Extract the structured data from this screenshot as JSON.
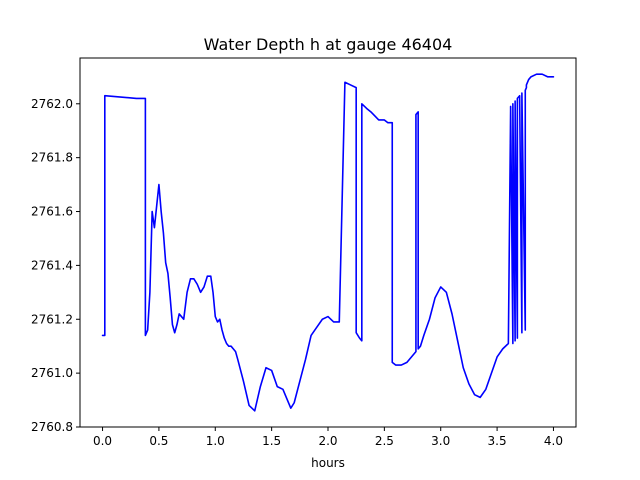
{
  "chart_data": {
    "type": "line",
    "title": "Water Depth h at gauge 46404",
    "xlabel": "hours",
    "ylabel": "",
    "xlim": [
      -0.2,
      4.2
    ],
    "ylim": [
      2760.8,
      2762.17
    ],
    "xticks": [
      0.0,
      0.5,
      1.0,
      1.5,
      2.0,
      2.5,
      3.0,
      3.5,
      4.0
    ],
    "xtick_labels": [
      "0.0",
      "0.5",
      "1.0",
      "1.5",
      "2.0",
      "2.5",
      "3.0",
      "3.5",
      "4.0"
    ],
    "yticks": [
      2760.8,
      2761.0,
      2761.2,
      2761.4,
      2761.6,
      2761.8,
      2762.0
    ],
    "ytick_labels": [
      "2760.8",
      "2761.0",
      "2761.2",
      "2761.4",
      "2761.6",
      "2761.8",
      "2762.0"
    ],
    "grid": false,
    "series": [
      {
        "name": "",
        "color": "#0000ff",
        "x": [
          0.0,
          0.02,
          0.02,
          0.3,
          0.38,
          0.38,
          0.4,
          0.42,
          0.44,
          0.46,
          0.48,
          0.5,
          0.52,
          0.54,
          0.56,
          0.58,
          0.6,
          0.62,
          0.64,
          0.66,
          0.68,
          0.7,
          0.72,
          0.75,
          0.78,
          0.81,
          0.84,
          0.87,
          0.9,
          0.93,
          0.96,
          0.98,
          1.0,
          1.02,
          1.04,
          1.06,
          1.08,
          1.1,
          1.12,
          1.14,
          1.16,
          1.18,
          1.2,
          1.25,
          1.3,
          1.35,
          1.4,
          1.45,
          1.5,
          1.55,
          1.6,
          1.65,
          1.67,
          1.7,
          1.75,
          1.8,
          1.85,
          1.9,
          1.95,
          2.0,
          2.05,
          2.1,
          2.15,
          2.2,
          2.25,
          2.25,
          2.28,
          2.3,
          2.3,
          2.35,
          2.35,
          2.38,
          2.45,
          2.5,
          2.53,
          2.57,
          2.57,
          2.6,
          2.65,
          2.7,
          2.74,
          2.78,
          2.78,
          2.8,
          2.8,
          2.82,
          2.85,
          2.9,
          2.95,
          3.0,
          3.05,
          3.1,
          3.15,
          3.2,
          3.25,
          3.3,
          3.35,
          3.4,
          3.45,
          3.5,
          3.55,
          3.6,
          3.62,
          3.62,
          3.64,
          3.64,
          3.66,
          3.66,
          3.68,
          3.68,
          3.7,
          3.72,
          3.72,
          3.75,
          3.75,
          3.76,
          3.76,
          3.78,
          3.8,
          3.85,
          3.9,
          3.95,
          4.0
        ],
        "y": [
          2761.14,
          2761.14,
          2762.03,
          2762.02,
          2762.02,
          2761.14,
          2761.16,
          2761.3,
          2761.6,
          2761.54,
          2761.62,
          2761.7,
          2761.6,
          2761.52,
          2761.41,
          2761.37,
          2761.28,
          2761.18,
          2761.15,
          2761.18,
          2761.22,
          2761.21,
          2761.2,
          2761.3,
          2761.35,
          2761.35,
          2761.33,
          2761.3,
          2761.32,
          2761.36,
          2761.36,
          2761.3,
          2761.21,
          2761.19,
          2761.2,
          2761.16,
          2761.13,
          2761.11,
          2761.1,
          2761.1,
          2761.09,
          2761.08,
          2761.05,
          2760.97,
          2760.88,
          2760.86,
          2760.95,
          2761.02,
          2761.01,
          2760.95,
          2760.94,
          2760.89,
          2760.87,
          2760.89,
          2760.97,
          2761.05,
          2761.14,
          2761.17,
          2761.2,
          2761.21,
          2761.19,
          2761.19,
          2762.08,
          2762.07,
          2762.06,
          2761.15,
          2761.13,
          2761.12,
          2762.0,
          2761.98,
          2761.98,
          2761.97,
          2761.94,
          2761.94,
          2761.93,
          2761.93,
          2761.04,
          2761.03,
          2761.03,
          2761.04,
          2761.06,
          2761.08,
          2761.96,
          2761.97,
          2761.09,
          2761.1,
          2761.14,
          2761.2,
          2761.28,
          2761.32,
          2761.3,
          2761.22,
          2761.12,
          2761.02,
          2760.96,
          2760.92,
          2760.91,
          2760.94,
          2761.0,
          2761.06,
          2761.09,
          2761.11,
          2761.98,
          2761.99,
          2761.11,
          2762.0,
          2761.12,
          2762.01,
          2761.13,
          2762.02,
          2762.03,
          2761.15,
          2762.04,
          2761.16,
          2762.05,
          2762.06,
          2762.07,
          2762.09,
          2762.1,
          2762.11,
          2762.11,
          2762.1,
          2762.1
        ]
      }
    ]
  }
}
